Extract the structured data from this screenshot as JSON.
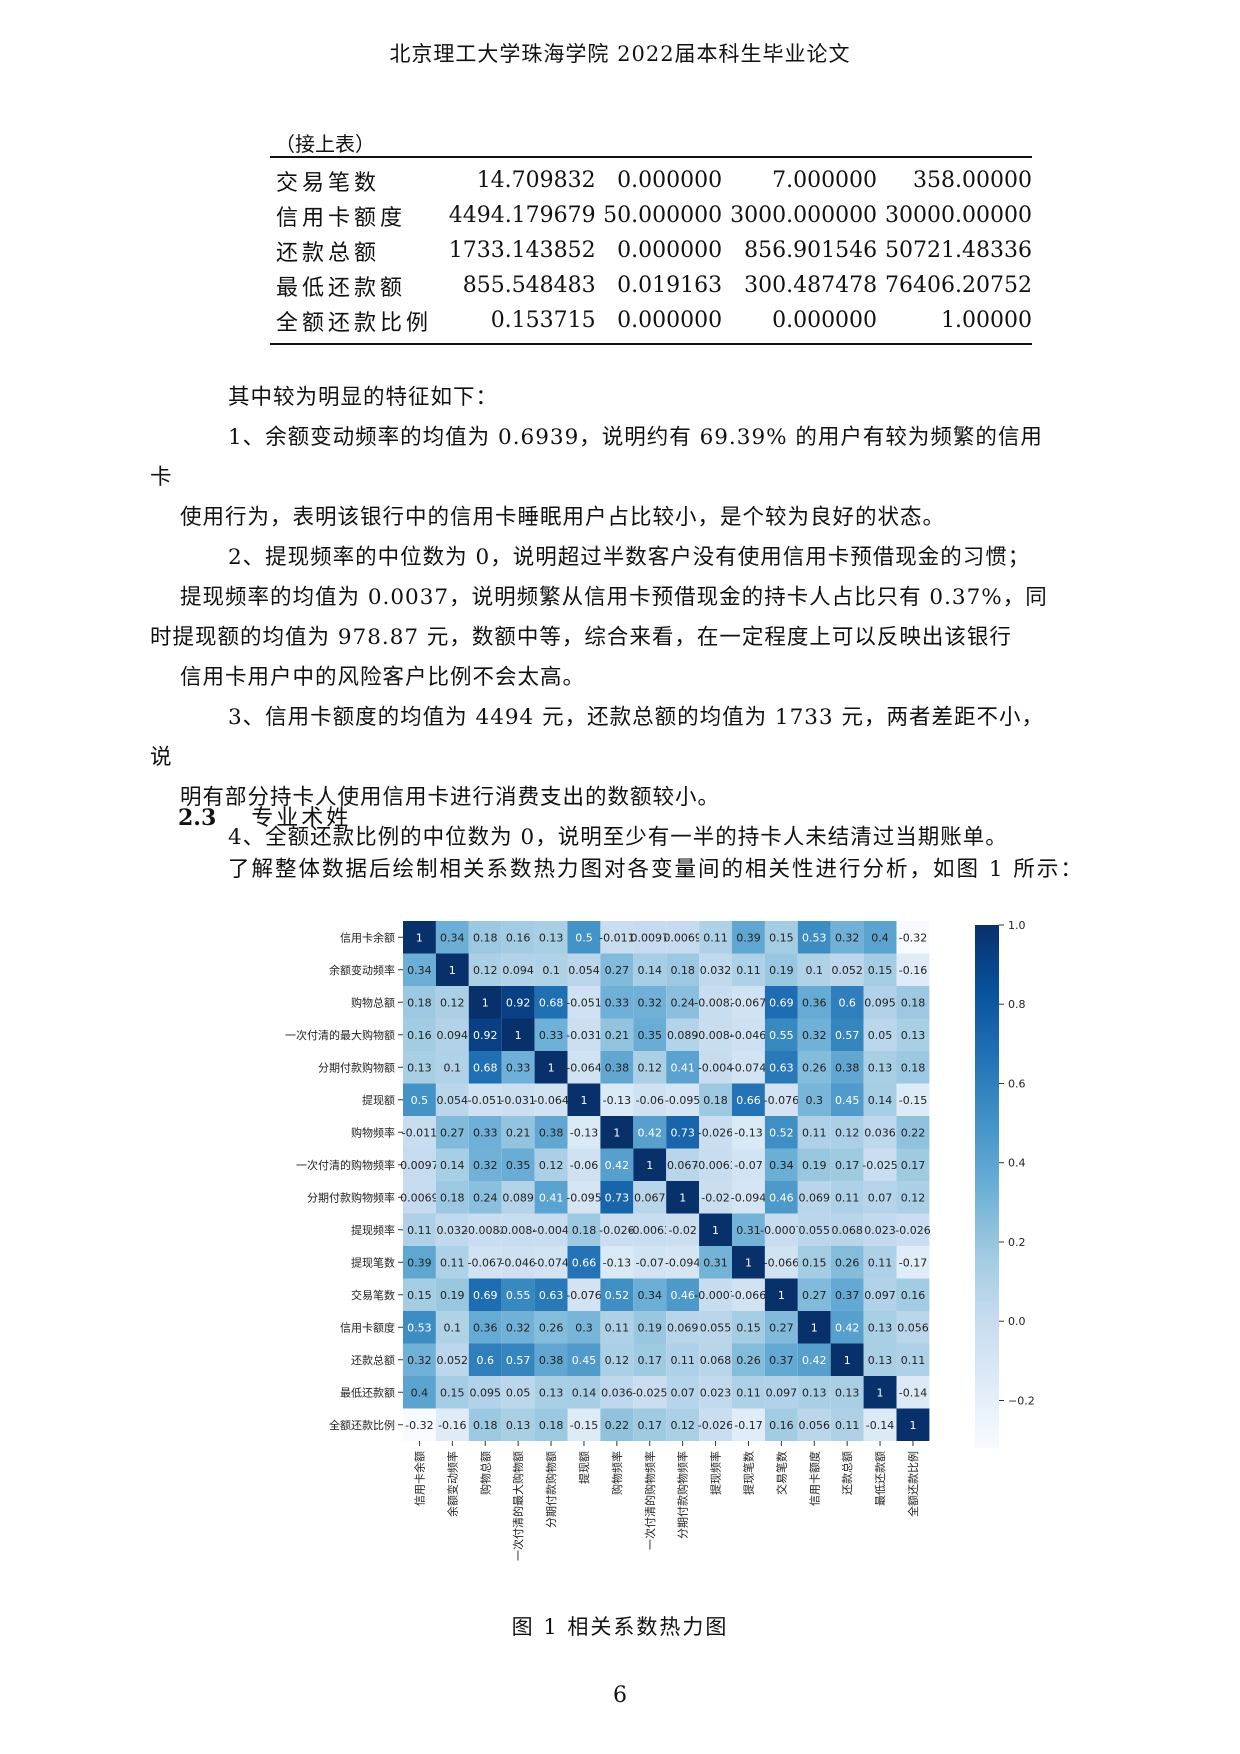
{
  "header": {
    "title": "北京理工大学珠海学院 2022届本科生毕业论文"
  },
  "table": {
    "continued_label": "（接上表）",
    "rows": [
      {
        "label": "交易笔数",
        "values": [
          "14.709832",
          "0.000000",
          "7.000000",
          "358.00000"
        ]
      },
      {
        "label": "信用卡额度",
        "values": [
          "4494.179679",
          "50.000000",
          "3000.000000",
          "30000.00000"
        ]
      },
      {
        "label": "还款总额",
        "values": [
          "1733.143852",
          "0.000000",
          "856.901546",
          "50721.48336"
        ]
      },
      {
        "label": "最低还款额",
        "values": [
          "855.548483",
          "0.019163",
          "300.487478",
          "76406.20752"
        ]
      },
      {
        "label": "全额还款比例",
        "values": [
          "0.153715",
          "0.000000",
          "0.000000",
          "1.00000"
        ]
      }
    ]
  },
  "paragraphs": {
    "intro_features": "其中较为明显的特征如下：",
    "p1_line1": "1、余额变动频率的均值为 0.6939，说明约有 69.39% 的用户有较为频繁的信用卡",
    "p1_line2": "使用行为，表明该银行中的信用卡睡眠用户占比较小，是个较为良好的状态。",
    "p2_line1": "2、提现频率的中位数为 0，说明超过半数客户没有使用信用卡预借现金的习惯；",
    "p2_line2": "提现频率的均值为 0.0037，说明频繁从信用卡预借现金的持卡人占比只有 0.37%，同",
    "p2_line3": "时提现额的均值为 978.87 元，数额中等，综合来看，在一定程度上可以反映出该银行",
    "p2_line4": "信用卡用户中的风险客户比例不会太高。",
    "p3_line1": "3、信用卡额度的均值为 4494 元，还款总额的均值为 1733 元，两者差距不小，说",
    "p3_line2": "明有部分持卡人使用信用卡进行消费支出的数额较小。",
    "p4_line1": "4、全额还款比例的中位数为 0，说明至少有一半的持卡人未结清过当期账单。"
  },
  "section": {
    "number": "2.3",
    "title": "专业术姓"
  },
  "section_intro": "了解整体数据后绘制相关系数热力图对各变量间的相关性进行分析，如图 1 所示：",
  "figure_caption": "图 1   相关系数热力图",
  "page_number": "6",
  "colors": {
    "low": "#f7fbff",
    "high": "#08306b"
  },
  "chart_data": {
    "type": "heatmap",
    "title": "",
    "variables": [
      "信用卡余额",
      "余额变动频率",
      "购物总额",
      "一次付清的最大购物额",
      "分期付款购物额",
      "提现额",
      "购物频率",
      "一次付清的购物频率",
      "分期付款购物频率",
      "提现频率",
      "提现笔数",
      "交易笔数",
      "信用卡额度",
      "还款总额",
      "最低还款额",
      "全额还款比例"
    ],
    "cell_labels": [
      [
        "1",
        "0.34",
        "0.18",
        "0.16",
        "0.13",
        "0.5",
        "-0.011",
        "0.0097",
        "0.0069",
        "0.11",
        "0.39",
        "0.15",
        "0.53",
        "0.32",
        "0.4",
        "-0.32"
      ],
      [
        "0.34",
        "1",
        "0.12",
        "0.094",
        "0.1",
        "0.054",
        "0.27",
        "0.14",
        "0.18",
        "0.032",
        "0.11",
        "0.19",
        "0.1",
        "0.052",
        "0.15",
        "-0.16"
      ],
      [
        "0.18",
        "0.12",
        "1",
        "0.92",
        "0.68",
        "-0.051",
        "0.33",
        "0.32",
        "0.24",
        "-0.0082",
        "-0.067",
        "0.69",
        "0.36",
        "0.6",
        "0.095",
        "0.18"
      ],
      [
        "0.16",
        "0.094",
        "0.92",
        "1",
        "0.33",
        "-0.031",
        "0.21",
        "0.35",
        "0.089",
        "-0.0084",
        "-0.046",
        "0.55",
        "0.32",
        "0.57",
        "0.05",
        "0.13"
      ],
      [
        "0.13",
        "0.1",
        "0.68",
        "0.33",
        "1",
        "-0.064",
        "0.38",
        "0.12",
        "0.41",
        "-0.004",
        "-0.074",
        "0.63",
        "0.26",
        "0.38",
        "0.13",
        "0.18"
      ],
      [
        "0.5",
        "0.054",
        "-0.051",
        "-0.031",
        "-0.064",
        "1",
        "-0.13",
        "-0.06",
        "-0.095",
        "0.18",
        "0.66",
        "-0.076",
        "0.3",
        "0.45",
        "0.14",
        "-0.15"
      ],
      [
        "-0.011",
        "0.27",
        "0.33",
        "0.21",
        "0.38",
        "-0.13",
        "1",
        "0.42",
        "0.73",
        "-0.026",
        "-0.13",
        "0.52",
        "0.11",
        "0.12",
        "0.036",
        "0.22"
      ],
      [
        "0.0097",
        "0.14",
        "0.32",
        "0.35",
        "0.12",
        "-0.06",
        "0.42",
        "1",
        "0.067",
        "-0.0063",
        "-0.07",
        "0.34",
        "0.19",
        "0.17",
        "-0.025",
        "0.17"
      ],
      [
        "0.0069",
        "0.18",
        "0.24",
        "0.089",
        "0.41",
        "-0.095",
        "0.73",
        "0.067",
        "1",
        "-0.02",
        "-0.094",
        "0.46",
        "0.069",
        "0.11",
        "0.07",
        "0.12"
      ],
      [
        "0.11",
        "0.032",
        "-0.0082",
        "-0.0084",
        "-0.004",
        "0.18",
        "-0.026",
        "-0.0063",
        "-0.02",
        "1",
        "0.31",
        "-0.0007",
        "0.055",
        "0.068",
        "0.023",
        "-0.026"
      ],
      [
        "0.39",
        "0.11",
        "-0.067",
        "-0.046",
        "-0.074",
        "0.66",
        "-0.13",
        "-0.07",
        "-0.094",
        "0.31",
        "1",
        "-0.066",
        "0.15",
        "0.26",
        "0.11",
        "-0.17"
      ],
      [
        "0.15",
        "0.19",
        "0.69",
        "0.55",
        "0.63",
        "-0.076",
        "0.52",
        "0.34",
        "0.46",
        "-0.0007",
        "-0.066",
        "1",
        "0.27",
        "0.37",
        "0.097",
        "0.16"
      ],
      [
        "0.53",
        "0.1",
        "0.36",
        "0.32",
        "0.26",
        "0.3",
        "0.11",
        "0.19",
        "0.069",
        "0.055",
        "0.15",
        "0.27",
        "1",
        "0.42",
        "0.13",
        "0.056"
      ],
      [
        "0.32",
        "0.052",
        "0.6",
        "0.57",
        "0.38",
        "0.45",
        "0.12",
        "0.17",
        "0.11",
        "0.068",
        "0.26",
        "0.37",
        "0.42",
        "1",
        "0.13",
        "0.11"
      ],
      [
        "0.4",
        "0.15",
        "0.095",
        "0.05",
        "0.13",
        "0.14",
        "0.036",
        "-0.025",
        "0.07",
        "0.023",
        "0.11",
        "0.097",
        "0.13",
        "0.13",
        "1",
        "-0.14"
      ],
      [
        "-0.32",
        "-0.16",
        "0.18",
        "0.13",
        "0.18",
        "-0.15",
        "0.22",
        "0.17",
        "0.12",
        "-0.026",
        "-0.17",
        "0.16",
        "0.056",
        "0.11",
        "-0.14",
        "1"
      ]
    ],
    "colorbar": {
      "range": [
        -0.32,
        1.0
      ],
      "ticks": [
        "1.0",
        "0.8",
        "0.6",
        "0.4",
        "0.2",
        "0.0",
        "−0.2"
      ]
    }
  }
}
